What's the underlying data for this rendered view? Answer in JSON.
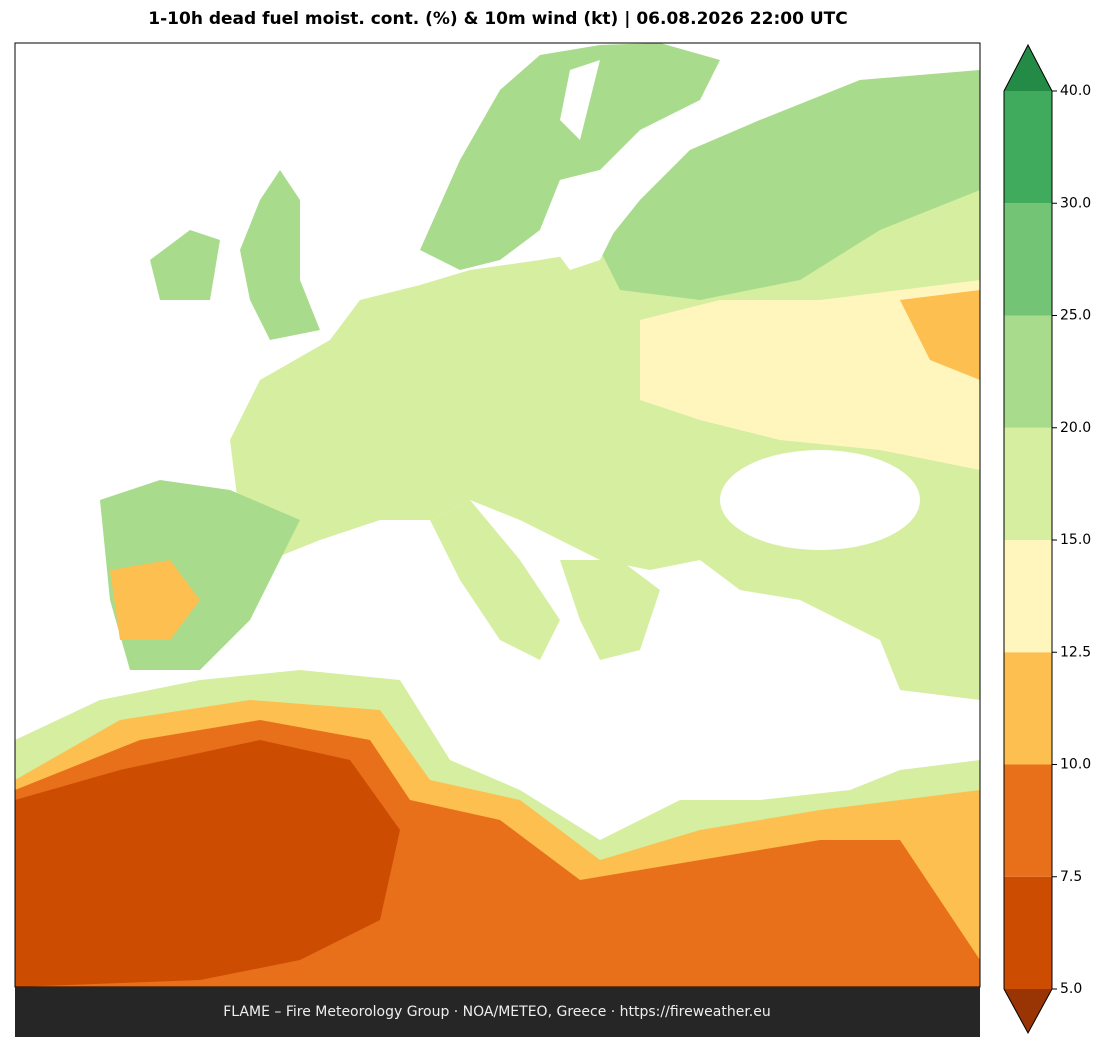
{
  "title": "1-10h dead fuel moist. cont. (%) & 10m wind (kt)  |  06.08.2026 22:00 UTC",
  "footer": "FLAME – Fire Meteorology Group · NOA/METEO, Greece · https://fireweather.eu",
  "colorbar": {
    "levels": [
      {
        "value": 5,
        "label": "5.0"
      },
      7.5,
      {
        "value": 10,
        "label": "10.0"
      },
      12.5,
      {
        "value": 15,
        "label": "15.0"
      },
      {
        "value": 20,
        "label": "20.0"
      },
      {
        "value": 25,
        "label": "25.0"
      },
      {
        "value": 30,
        "label": "30.0"
      },
      {
        "value": 40,
        "label": "40.0"
      }
    ],
    "colors": [
      "#cc4c02",
      "#e8701a",
      "#fdbf4f",
      "#fff6bd",
      "#d6eea0",
      "#a8db8c",
      "#74c476",
      "#41ab5d"
    ],
    "under_color": "#993404",
    "over_color": "#238b45"
  }
}
